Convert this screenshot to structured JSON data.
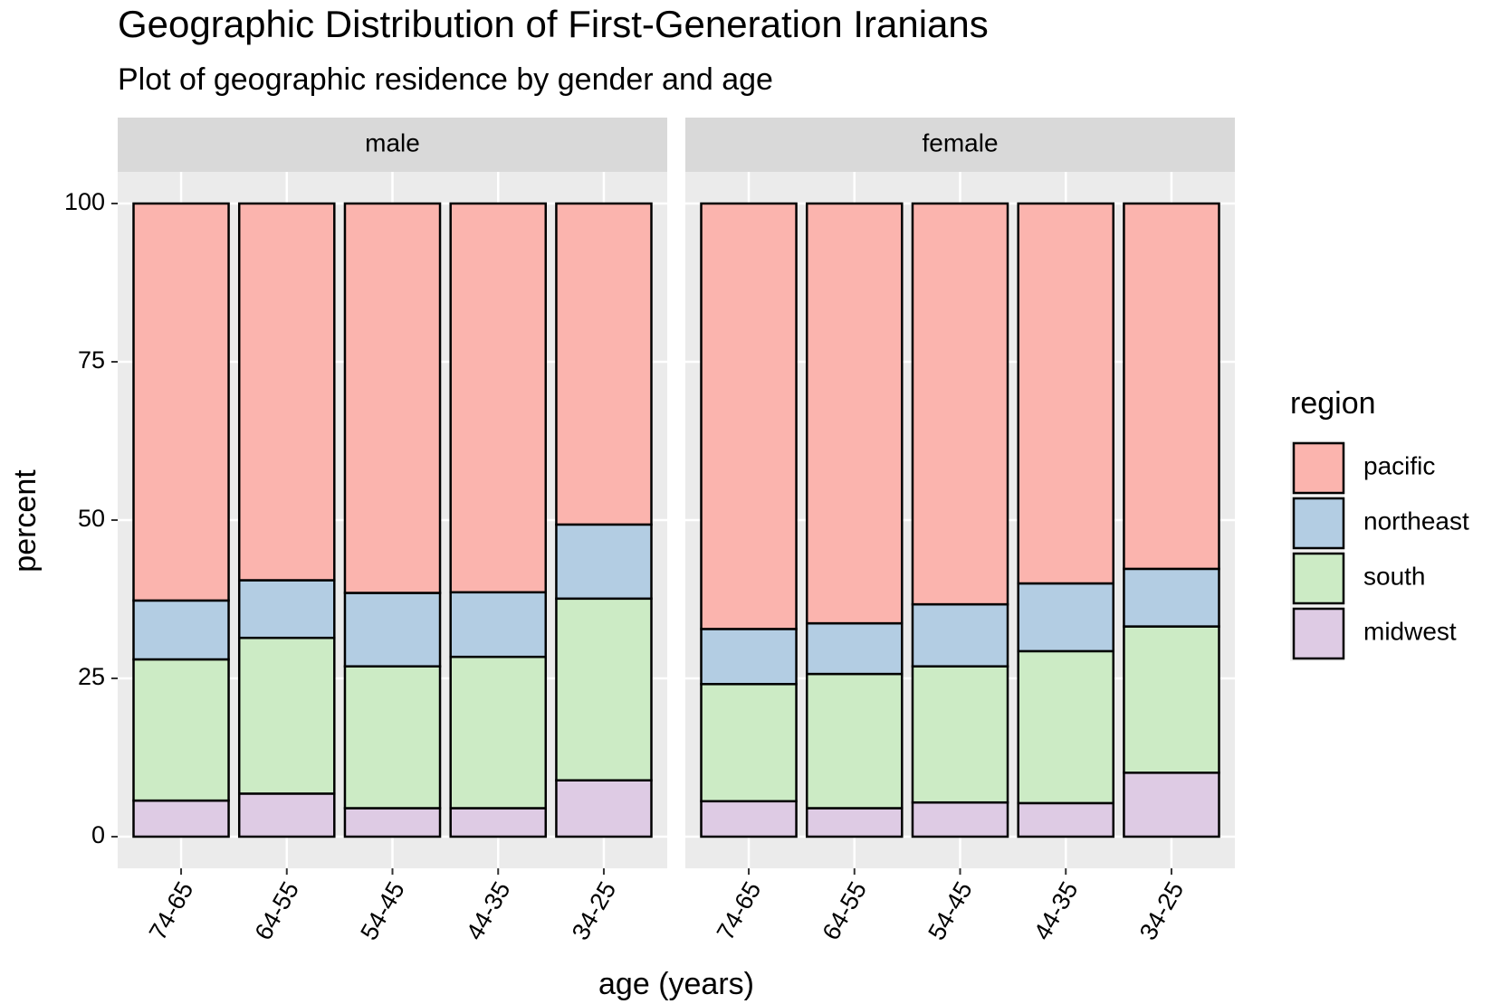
{
  "chart_data": {
    "type": "bar",
    "stacked": true,
    "title": "Geographic Distribution of First-Generation Iranians",
    "subtitle": "Plot of geographic residence by gender and age",
    "x_label": "age (years)",
    "y_label": "percent",
    "legend_title": "region",
    "legend_position": "right",
    "grid": true,
    "categories": [
      "74-65",
      "64-55",
      "54-45",
      "44-35",
      "34-25"
    ],
    "ylim": [
      -5,
      105
    ],
    "yticks": [
      0,
      25,
      50,
      75,
      100
    ],
    "series": [
      {
        "name": "pacific",
        "color": "#FBB4AE"
      },
      {
        "name": "northeast",
        "color": "#B3CDE3"
      },
      {
        "name": "south",
        "color": "#CCEBC5"
      },
      {
        "name": "midwest",
        "color": "#DECBE4"
      }
    ],
    "panels": [
      {
        "name": "male",
        "values": [
          [
            62.7,
            59.5,
            61.5,
            61.4,
            50.7
          ],
          [
            9.3,
            9.1,
            11.6,
            10.2,
            11.7
          ],
          [
            22.3,
            24.6,
            22.4,
            23.9,
            28.7
          ],
          [
            5.7,
            6.8,
            4.5,
            4.5,
            8.9
          ]
        ]
      },
      {
        "name": "female",
        "values": [
          [
            67.2,
            66.3,
            63.3,
            60.0,
            57.7
          ],
          [
            8.7,
            8.0,
            9.8,
            10.7,
            9.1
          ],
          [
            18.5,
            21.2,
            21.5,
            24.0,
            23.1
          ],
          [
            5.6,
            4.5,
            5.4,
            5.3,
            10.1
          ]
        ]
      }
    ]
  }
}
